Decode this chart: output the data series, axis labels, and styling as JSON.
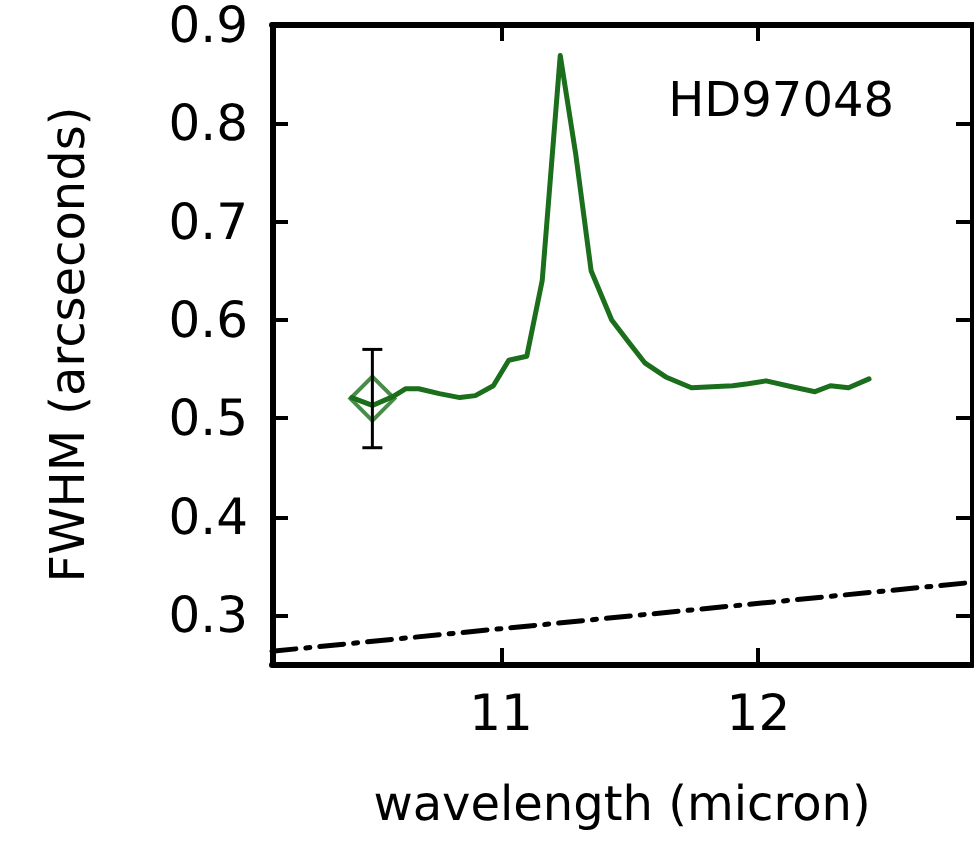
{
  "chart_data": {
    "type": "line",
    "xlabel": "wavelength (micron)",
    "ylabel": "FWHM (arcseconds)",
    "annotations": [
      "HD97048"
    ],
    "xlim": [
      10.11,
      12.83
    ],
    "ylim": [
      0.25,
      0.9
    ],
    "xticks": [
      11,
      12
    ],
    "yticks": [
      0.3,
      0.4,
      0.5,
      0.6,
      0.7,
      0.8,
      0.9
    ],
    "grid": false,
    "marker": "none",
    "series": [
      {
        "color": "#1b6e1b",
        "line_style": "solid",
        "x": [
          10.42,
          10.5,
          10.58,
          10.63,
          10.68,
          10.76,
          10.84,
          10.9,
          10.97,
          11.03,
          11.1,
          11.16,
          11.23,
          11.29,
          11.35,
          11.43,
          11.5,
          11.56,
          11.64,
          11.74,
          11.82,
          11.9,
          11.96,
          12.03,
          12.13,
          12.22,
          12.28,
          12.35,
          12.43
        ],
        "values": [
          0.521,
          0.513,
          0.522,
          0.53,
          0.53,
          0.525,
          0.521,
          0.523,
          0.533,
          0.559,
          0.563,
          0.64,
          0.869,
          0.769,
          0.65,
          0.6,
          0.576,
          0.556,
          0.542,
          0.531,
          0.532,
          0.533,
          0.535,
          0.538,
          0.532,
          0.527,
          0.533,
          0.531,
          0.54
        ]
      },
      {
        "type": "scatter",
        "color": "#1b6e1b",
        "marker": "diamond",
        "x": [
          10.5
        ],
        "values": [
          0.52
        ],
        "errors": [
          0.05
        ]
      },
      {
        "color": "#000000",
        "line_style": "dashdot",
        "x": [
          10.11,
          12.83
        ],
        "values": [
          0.263,
          0.333
        ]
      }
    ]
  }
}
